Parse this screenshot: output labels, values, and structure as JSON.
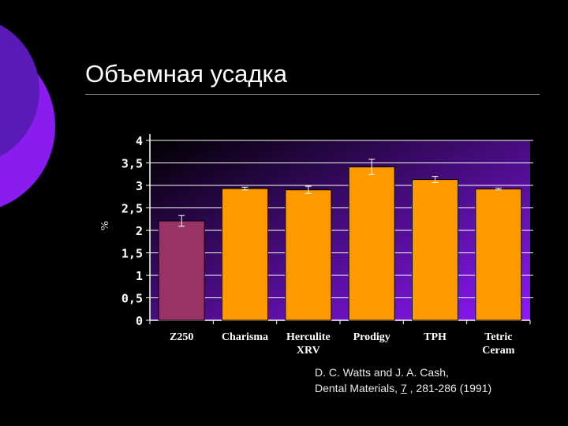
{
  "slide": {
    "title": "Объемная усадка"
  },
  "citation": {
    "line1": "D. C. Watts and J. A. Cash,",
    "line2_prefix": "Dental Materials,",
    "volume": "7",
    "line2_suffix": ", 281-286 (1991)"
  },
  "colors": {
    "background": "#000000",
    "deco_outer": "#8a1cf0",
    "deco_inner": "#5a1ab8",
    "plot_bg_top": "#000000",
    "plot_bg_bottom": "#8f18ff",
    "highlight_bar": "#993366",
    "bar": "#ff9900"
  },
  "chart_data": {
    "type": "bar",
    "title": "",
    "xlabel": "",
    "ylabel": "%",
    "ylim": [
      0,
      4
    ],
    "yticks": [
      "0",
      "0,5",
      "1",
      "1,5",
      "2",
      "2,5",
      "3",
      "3,5",
      "4"
    ],
    "grid": true,
    "legend": "none",
    "categories": [
      [
        "Z250"
      ],
      [
        "Charisma"
      ],
      [
        "Herculite",
        "XRV"
      ],
      [
        "Prodigy"
      ],
      [
        "TPH"
      ],
      [
        "Tetric",
        "Ceram"
      ]
    ],
    "values": [
      2.21,
      2.93,
      2.9,
      3.41,
      3.13,
      2.92
    ],
    "errors": [
      0.12,
      0.03,
      0.08,
      0.17,
      0.07,
      0.02
    ],
    "highlight_index": 0
  }
}
